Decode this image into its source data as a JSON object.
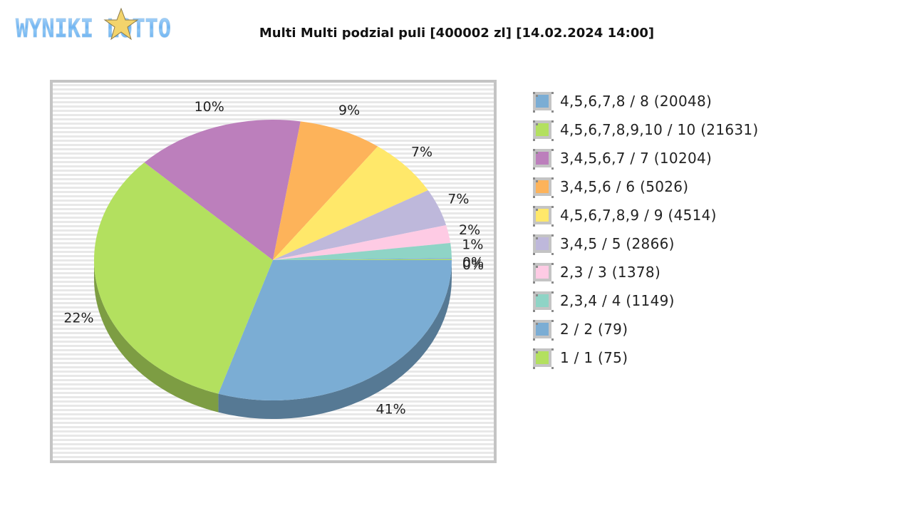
{
  "logo": {
    "text": "WYNIKI LOTTO",
    "icon": "star-icon"
  },
  "header": {
    "title": "Multi Multi podzial puli [400002 zl] [14.02.2024 14:00]"
  },
  "chart_data": {
    "type": "pie",
    "title": "Multi Multi podzial puli [400002 zl] [14.02.2024 14:00]",
    "style": "3d",
    "legend_position": "right",
    "categories": [
      "4,5,6,7,8 / 8 (20048)",
      "4,5,6,7,8,9,10 / 10 (21631)",
      "3,4,5,6,7 / 7 (10204)",
      "3,4,5,6 / 6 (5026)",
      "4,5,6,7,8,9 / 9 (4514)",
      "3,4,5 / 5 (2866)",
      "2,3 / 3 (1378)",
      "2,3,4 / 4 (1149)",
      "2 / 2 (79)",
      "1 / 1 (75)"
    ],
    "values": [
      20048,
      21631,
      10204,
      5026,
      4514,
      2866,
      1378,
      1149,
      79,
      75
    ],
    "percent_labels": [
      "41%",
      "22%",
      "10%",
      "9%",
      "7%",
      "7%",
      "2%",
      "1%",
      "0%",
      "0%"
    ],
    "colors": [
      "#7badd4",
      "#b3e05f",
      "#bc7fbc",
      "#fdb35a",
      "#ffe86a",
      "#beb8db",
      "#fecbe4",
      "#8fd4c6",
      "#7badd4",
      "#b3e05f"
    ]
  },
  "legend": {
    "items": [
      {
        "label": "4,5,6,7,8 / 8 (20048)",
        "color": "#7badd4"
      },
      {
        "label": "4,5,6,7,8,9,10 / 10 (21631)",
        "color": "#b3e05f"
      },
      {
        "label": "3,4,5,6,7 / 7 (10204)",
        "color": "#bc7fbc"
      },
      {
        "label": "3,4,5,6 / 6 (5026)",
        "color": "#fdb35a"
      },
      {
        "label": "4,5,6,7,8,9 / 9 (4514)",
        "color": "#ffe86a"
      },
      {
        "label": "3,4,5 / 5 (2866)",
        "color": "#beb8db"
      },
      {
        "label": "2,3 / 3 (1378)",
        "color": "#fecbe4"
      },
      {
        "label": "2,3,4 / 4 (1149)",
        "color": "#8fd4c6"
      },
      {
        "label": "2 / 2 (79)",
        "color": "#7badd4"
      },
      {
        "label": "1 / 1 (75)",
        "color": "#b3e05f"
      }
    ]
  }
}
